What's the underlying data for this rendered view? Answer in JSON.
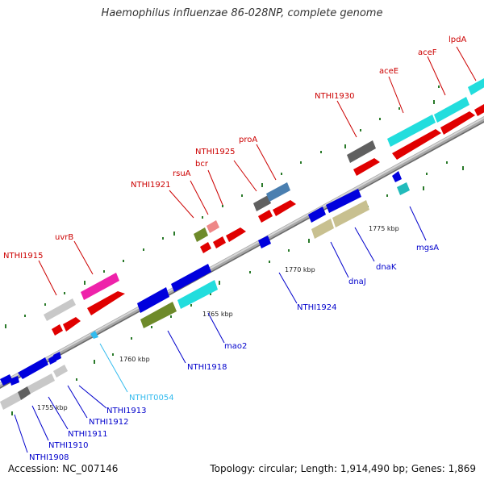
{
  "title": "Haemophilus influenzae 86-028NP, complete genome",
  "accession": "Accession: NC_007146",
  "topology": "Topology: circular; Length: 1,914,490 bp; Genes: 1,869",
  "colors": {
    "forward_label": "#cc0000",
    "reverse_label": "#0000cc",
    "rna_label": "#33bbee",
    "backbone": "#8a8a8a"
  },
  "kbp_ticks": [
    "1755 kbp",
    "1760 kbp",
    "1765 kbp",
    "1770 kbp",
    "1775 kbp"
  ],
  "forward_genes": [
    "NTHI1915",
    "uvrB",
    "NTHI1921",
    "rsuA",
    "bcr",
    "NTHI1925",
    "proA",
    "NTHI1930",
    "aceE",
    "aceF",
    "lpdA"
  ],
  "reverse_genes": [
    "NTHI1908",
    "NTHI1910",
    "NTHI1911",
    "NTHI1912",
    "NTHI1913",
    "NTHI1918",
    "mao2",
    "NTHI1924",
    "dnaJ",
    "dnaK",
    "mgsA"
  ],
  "rna_genes": [
    "NTHIT0054"
  ]
}
